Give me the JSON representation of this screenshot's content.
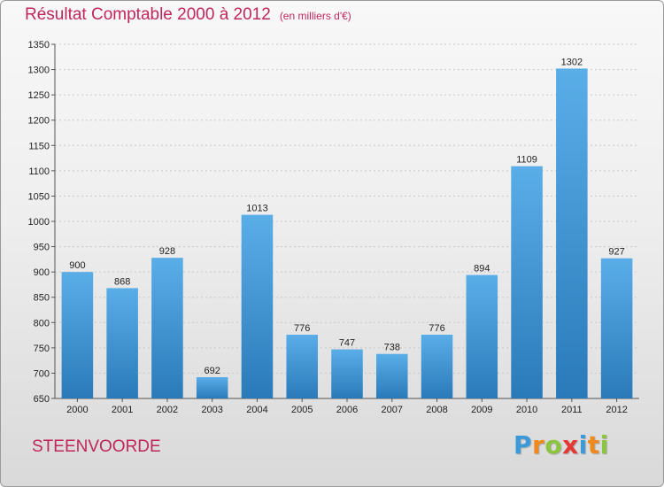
{
  "header": {
    "title": "Résultat Comptable 2000 à 2012",
    "subtitle": "(en milliers d'€)"
  },
  "footer": {
    "city": "STEENVOORDE",
    "logo_text": "Proxiti",
    "logo_letters": [
      {
        "char": "P",
        "color": "#3a9bd8"
      },
      {
        "char": "r",
        "color": "#f08a1c"
      },
      {
        "char": "o",
        "color": "#8cc63f"
      },
      {
        "char": "x",
        "color": "#e53935"
      },
      {
        "char": "i",
        "color": "#3a9bd8"
      },
      {
        "char": "t",
        "color": "#f08a1c"
      },
      {
        "char": "i",
        "color": "#8cc63f"
      }
    ]
  },
  "colors": {
    "accent": "#c0265c",
    "bar_top": "#5aaee8",
    "bar_bottom": "#2a7ab9"
  },
  "chart_data": {
    "type": "bar",
    "title": "Résultat Comptable 2000 à 2012",
    "subtitle": "(en milliers d'€)",
    "xlabel": "",
    "ylabel": "",
    "categories": [
      "2000",
      "2001",
      "2002",
      "2003",
      "2004",
      "2005",
      "2006",
      "2007",
      "2008",
      "2009",
      "2010",
      "2011",
      "2012"
    ],
    "values": [
      900,
      868,
      928,
      692,
      1013,
      776,
      747,
      738,
      776,
      894,
      1109,
      1302,
      927
    ],
    "ylim": [
      650,
      1350
    ],
    "yticks": [
      650,
      700,
      750,
      800,
      850,
      900,
      950,
      1000,
      1050,
      1100,
      1150,
      1200,
      1250,
      1300,
      1350
    ],
    "grid": true
  }
}
